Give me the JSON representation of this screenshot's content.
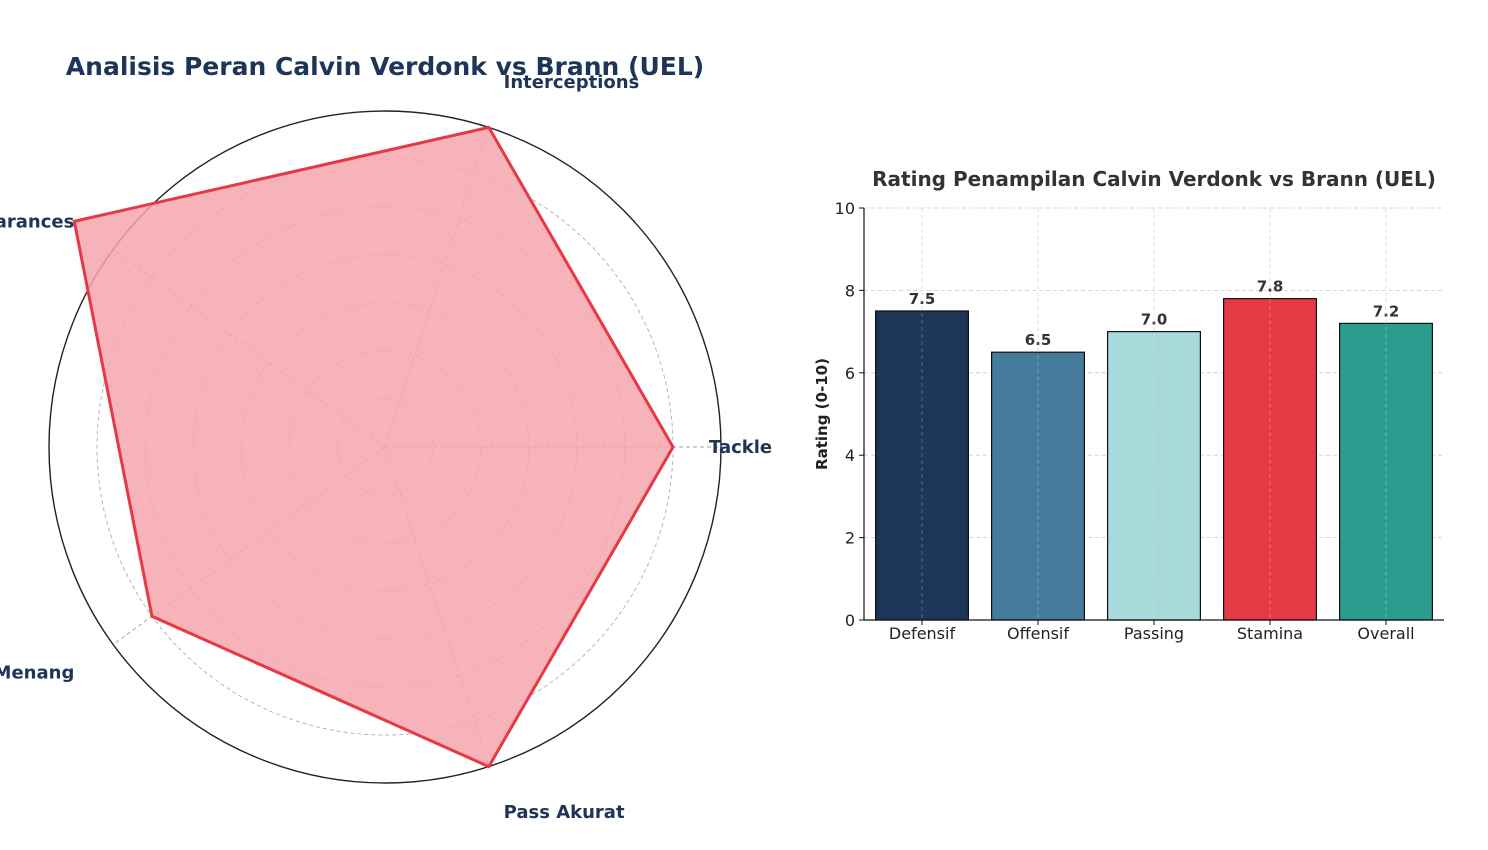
{
  "chart_data": [
    {
      "type": "radar",
      "title": "Analisis Peran Calvin Verdonk vs Brann (UEL)",
      "categories": [
        "Tackle",
        "Interceptions",
        "Clearances",
        "Duels Menang",
        "Pass Akurat"
      ],
      "values": [
        6,
        7,
        8,
        6,
        7
      ],
      "rmax": 7,
      "rticks": [
        1,
        2,
        3,
        4,
        5,
        6,
        7
      ],
      "grid": true,
      "colors": {
        "line": "#e63946",
        "fill": "#f4a6ad",
        "label": "#1d3557"
      }
    },
    {
      "type": "bar",
      "title": "Rating Penampilan Calvin Verdonk vs Brann (UEL)",
      "categories": [
        "Defensif",
        "Offensif",
        "Passing",
        "Stamina",
        "Overall"
      ],
      "values": [
        7.5,
        6.5,
        7.0,
        7.8,
        7.2
      ],
      "value_labels": [
        "7.5",
        "6.5",
        "7.0",
        "7.8",
        "7.2"
      ],
      "xlabel": "",
      "ylabel": "Rating (0-10)",
      "ylim": [
        0,
        10
      ],
      "yticks": [
        "0",
        "2",
        "4",
        "6",
        "8",
        "10"
      ],
      "grid": true,
      "colors": [
        "#1d3557",
        "#457b9d",
        "#a8dadc",
        "#e63946",
        "#2a9d8f"
      ]
    }
  ]
}
